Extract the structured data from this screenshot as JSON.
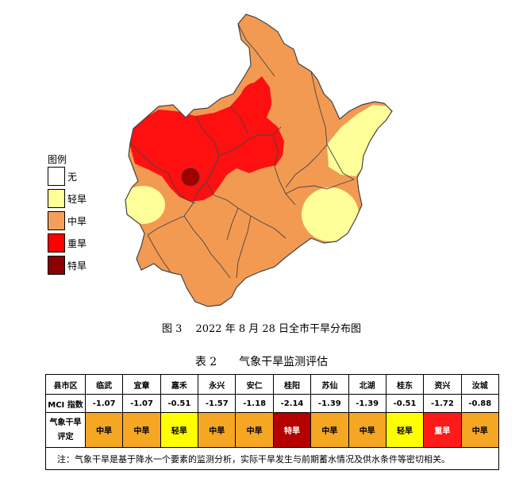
{
  "legend": {
    "title": "图例",
    "items": [
      {
        "label": "无",
        "color": "#ffffff"
      },
      {
        "label": "轻旱",
        "color": "#ffff99"
      },
      {
        "label": "中旱",
        "color": "#f5a05a"
      },
      {
        "label": "重旱",
        "color": "#ff0000"
      },
      {
        "label": "特旱",
        "color": "#8b0000"
      }
    ]
  },
  "map": {
    "colors": {
      "base": "#f39a52",
      "light": "#ffff99",
      "severe": "#ff1010",
      "extreme": "#a00000",
      "border": "#444444"
    }
  },
  "figure_caption": "图 3　 2022 年 8 月 28 日全市干旱分布图",
  "table_title": "表 2　　气象干旱监测评估",
  "table": {
    "header_label": "县市区",
    "mci_label": "MCI 指数",
    "level_label": "气象干旱评定",
    "counties": [
      "临武",
      "宜章",
      "嘉禾",
      "永兴",
      "安仁",
      "桂阳",
      "苏仙",
      "北湖",
      "桂东",
      "资兴",
      "汝城"
    ],
    "mci": [
      "-1.07",
      "-1.07",
      "-0.51",
      "-1.57",
      "-1.18",
      "-2.14",
      "-1.39",
      "-1.39",
      "-0.51",
      "-1.72",
      "-0.88"
    ],
    "levels": [
      "中旱",
      "中旱",
      "轻旱",
      "中旱",
      "中旱",
      "特旱",
      "中旱",
      "中旱",
      "轻旱",
      "重旱",
      "中旱"
    ],
    "note": "注：气象干旱是基于降水一个要素的监测分析，实际干旱发生与前期蓄水情况及供水条件等密切相关。"
  }
}
